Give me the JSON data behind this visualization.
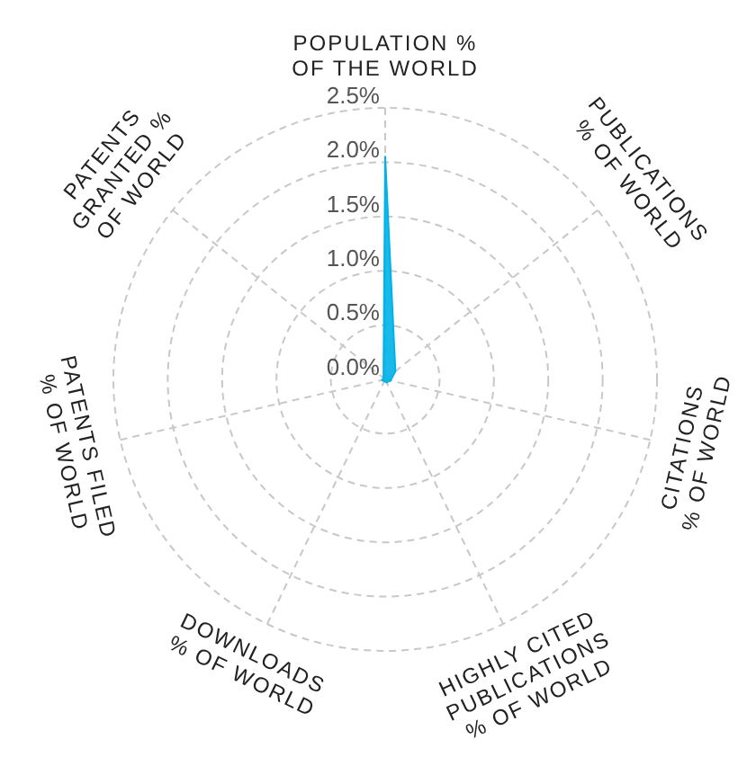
{
  "chart_data": {
    "type": "radar",
    "categories": [
      "POPULATION %\nOF THE WORLD",
      "PUBLICATIONS\n% OF WORLD",
      "CITATIONS\n% OF WORLD",
      "HIGHLY CITED\nPUBLICATIONS\n% OF WORLD",
      "DOWNLOADS\n% OF WORLD",
      "PATENTS FILED\n% OF WORLD",
      "PATENTS\nGRANTED %\nOF WORLD"
    ],
    "series": [
      {
        "color": "#00b2e8",
        "values": [
          2.05,
          0.12,
          0.05,
          0.03,
          0.02,
          0.03,
          0.02
        ]
      }
    ],
    "ylim": [
      0,
      2.5
    ],
    "yticks": [
      {
        "value": 0,
        "label": "0.0%"
      },
      {
        "value": 0.5,
        "label": "0.5%"
      },
      {
        "value": 1,
        "label": "1.0%"
      },
      {
        "value": 1.5,
        "label": "1.5%"
      },
      {
        "value": 2,
        "label": "2.0%"
      },
      {
        "value": 2.5,
        "label": "2.5%"
      }
    ],
    "grid": true
  }
}
